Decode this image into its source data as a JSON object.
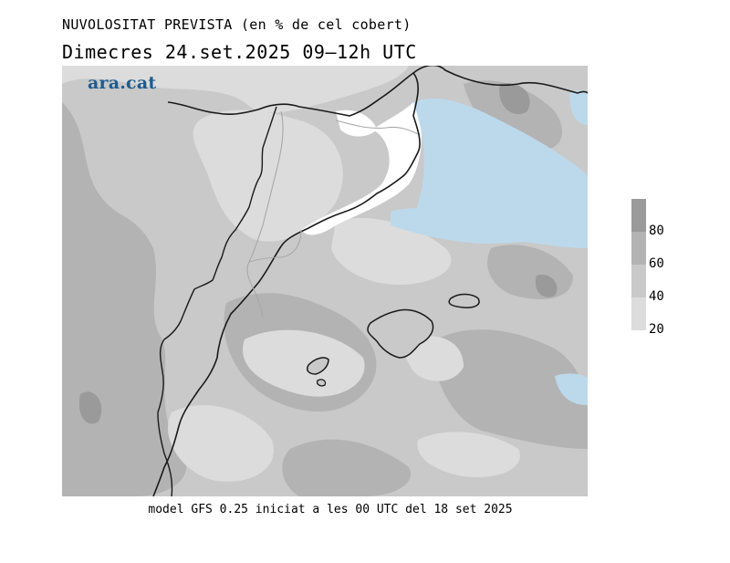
{
  "title": {
    "line1": "NUVOLOSITAT PREVISTA (en % de cel cobert)",
    "line2": "Dimecres  24.set.2025 09–12h UTC"
  },
  "logo": {
    "text": "ara.cat"
  },
  "footer": {
    "text": "model GFS 0.25 iniciat a les 00 UTC del 18 set 2025"
  },
  "legend": {
    "labels": [
      "80",
      "60",
      "40",
      "20"
    ],
    "colors": [
      "#9a9a9a",
      "#b3b3b3",
      "#c9c9c9",
      "#dcdcdc"
    ]
  },
  "map": {
    "colors": {
      "clear": "#ffffff",
      "low": "#dcdcdc",
      "mid": "#c9c9c9",
      "high": "#b3b3b3",
      "veryhigh": "#9a9a9a",
      "sea_clear": "#bcd9ec",
      "coast": "#1a1a1a",
      "border": "#a8a8a8"
    }
  }
}
